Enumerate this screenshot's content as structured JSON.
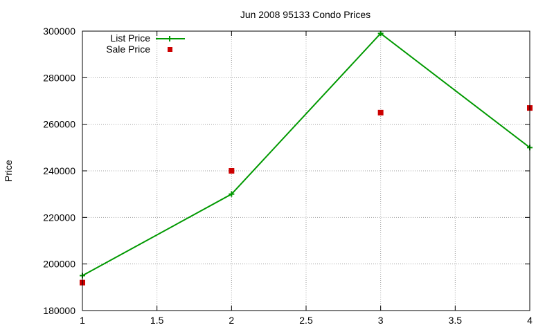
{
  "chart_data": {
    "type": "line",
    "title": "Jun 2008 95133 Condo Prices",
    "xlabel": "",
    "ylabel": "Price",
    "xlim": [
      1,
      4
    ],
    "ylim": [
      180000,
      300000
    ],
    "x_ticks": [
      1,
      1.5,
      2,
      2.5,
      3,
      3.5,
      4
    ],
    "x_tick_labels": [
      "1",
      "1.5",
      "2",
      "2.5",
      "3",
      "3.5",
      "4"
    ],
    "y_ticks": [
      180000,
      200000,
      220000,
      240000,
      260000,
      280000,
      300000
    ],
    "y_tick_labels": [
      "180000",
      "200000",
      "220000",
      "240000",
      "260000",
      "280000",
      "300000"
    ],
    "grid": true,
    "legend_position": "top-left",
    "series": [
      {
        "name": "List Price",
        "style": "linespoints",
        "marker": "plus",
        "color": "#009900",
        "x": [
          1,
          2,
          3,
          4
        ],
        "y": [
          195000,
          230000,
          299000,
          250000
        ]
      },
      {
        "name": "Sale Price",
        "style": "points",
        "marker": "square",
        "color": "#cc0000",
        "x": [
          1,
          2,
          3,
          4
        ],
        "y": [
          192000,
          240000,
          265000,
          267000
        ]
      }
    ]
  }
}
